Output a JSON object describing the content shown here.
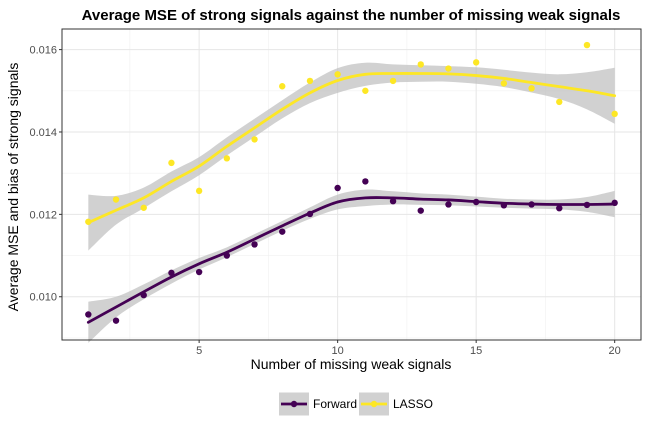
{
  "chart_data": {
    "type": "scatter",
    "title": "Average MSE of strong signals against the number of missing weak signals",
    "xlabel": "Number of missing weak signals",
    "ylabel": "Average MSE and bias of strong signals",
    "xlim": [
      0.05,
      20.95
    ],
    "ylim": [
      0.00895,
      0.0165
    ],
    "x_ticks": [
      5,
      10,
      15,
      20
    ],
    "y_ticks": [
      0.01,
      0.012,
      0.014,
      0.016
    ],
    "y_tick_labels": [
      "0.010",
      "0.012",
      "0.014",
      "0.016"
    ],
    "grid": true,
    "legend_position": "bottom",
    "smoother": "loess with confidence band",
    "series": [
      {
        "name": "Forward",
        "color": "#440154",
        "x": [
          1,
          2,
          3,
          4,
          5,
          6,
          7,
          8,
          9,
          10,
          11,
          12,
          13,
          14,
          15,
          16,
          17,
          18,
          19,
          20
        ],
        "y": [
          0.00957,
          0.00942,
          0.01004,
          0.01058,
          0.0106,
          0.011,
          0.01127,
          0.01158,
          0.01201,
          0.01264,
          0.0128,
          0.01232,
          0.01209,
          0.01224,
          0.0123,
          0.01222,
          0.01224,
          0.01215,
          0.01223,
          0.01228
        ],
        "fit": [
          0.00938,
          0.00975,
          0.01012,
          0.01048,
          0.0108,
          0.01108,
          0.0114,
          0.01172,
          0.01203,
          0.0123,
          0.0124,
          0.0124,
          0.01237,
          0.01235,
          0.01231,
          0.01227,
          0.01225,
          0.01224,
          0.01224,
          0.01225
        ],
        "band_half_width": [
          0.0005,
          0.00025,
          0.00018,
          0.00016,
          0.00014,
          0.00012,
          0.00012,
          0.00012,
          0.00014,
          0.00018,
          0.0002,
          0.00016,
          0.00014,
          0.00013,
          0.00012,
          0.00011,
          0.00011,
          0.00012,
          0.00018,
          0.00032
        ]
      },
      {
        "name": "LASSO",
        "color": "#fde725",
        "x": [
          1,
          2,
          3,
          4,
          5,
          6,
          7,
          8,
          9,
          10,
          11,
          12,
          13,
          14,
          15,
          16,
          17,
          18,
          19,
          20
        ],
        "y": [
          0.01182,
          0.01236,
          0.01216,
          0.01325,
          0.01257,
          0.01336,
          0.01382,
          0.01511,
          0.01524,
          0.0154,
          0.015,
          0.01524,
          0.01564,
          0.01554,
          0.01569,
          0.01518,
          0.01506,
          0.01473,
          0.01611,
          0.01444
        ],
        "fit": [
          0.0118,
          0.0121,
          0.0124,
          0.0128,
          0.01317,
          0.01365,
          0.0141,
          0.01455,
          0.01495,
          0.01525,
          0.0154,
          0.01542,
          0.01542,
          0.01541,
          0.01537,
          0.0153,
          0.0152,
          0.0151,
          0.015,
          0.01488
        ],
        "band_half_width": [
          0.00068,
          0.00035,
          0.00025,
          0.00024,
          0.00022,
          0.00022,
          0.00022,
          0.00022,
          0.00025,
          0.0003,
          0.00028,
          0.00022,
          0.0002,
          0.00019,
          0.0002,
          0.00021,
          0.00024,
          0.0003,
          0.00045,
          0.00068
        ]
      }
    ],
    "band_color": "#bfbfbf"
  }
}
